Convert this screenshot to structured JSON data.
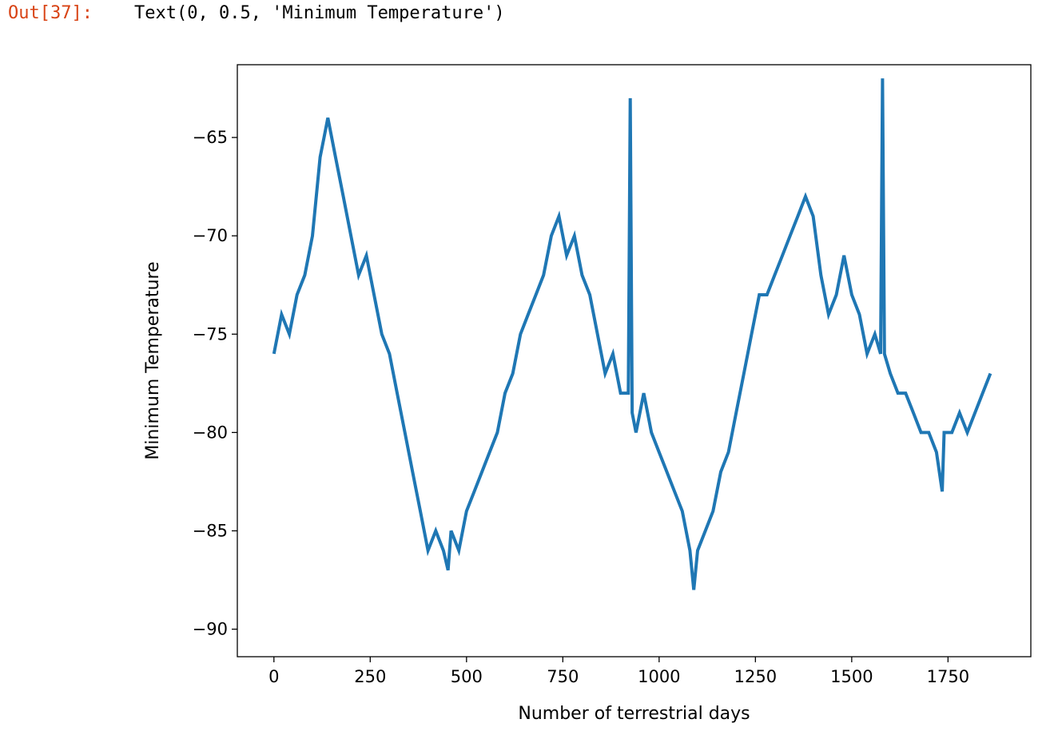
{
  "cell": {
    "prompt": "Out[37]:",
    "text": "Text(0, 0.5, 'Minimum Temperature')"
  },
  "chart_data": {
    "type": "line",
    "title": "",
    "xlabel": "Number of terrestrial days",
    "ylabel": "Minimum Temperature",
    "xlim": [
      -95,
      1965
    ],
    "ylim": [
      -91.4,
      -61.3
    ],
    "xticks": [
      0,
      250,
      500,
      750,
      1000,
      1250,
      1500,
      1750
    ],
    "xtick_labels": [
      "0",
      "250",
      "500",
      "750",
      "1000",
      "1250",
      "1500",
      "1750"
    ],
    "yticks": [
      -65,
      -70,
      -75,
      -80,
      -85,
      -90
    ],
    "ytick_labels": [
      "−65",
      "−70",
      "−75",
      "−80",
      "−85",
      "−90"
    ],
    "grid": false,
    "series": [
      {
        "color": "#1f77b4",
        "x": [
          0,
          20,
          40,
          60,
          80,
          100,
          120,
          130,
          140,
          160,
          180,
          200,
          220,
          240,
          260,
          280,
          300,
          320,
          340,
          360,
          380,
          400,
          420,
          440,
          452,
          460,
          480,
          500,
          520,
          540,
          560,
          580,
          600,
          620,
          640,
          660,
          680,
          700,
          720,
          740,
          760,
          780,
          800,
          820,
          840,
          860,
          880,
          900,
          920,
          925,
          930,
          940,
          960,
          980,
          1000,
          1020,
          1040,
          1060,
          1080,
          1090,
          1100,
          1120,
          1140,
          1160,
          1180,
          1200,
          1220,
          1240,
          1260,
          1280,
          1300,
          1320,
          1340,
          1360,
          1380,
          1400,
          1420,
          1440,
          1460,
          1480,
          1500,
          1520,
          1540,
          1560,
          1575,
          1580,
          1585,
          1600,
          1620,
          1640,
          1660,
          1680,
          1700,
          1720,
          1735,
          1740,
          1760,
          1780,
          1800,
          1820,
          1840,
          1860
        ],
        "y": [
          -76,
          -74,
          -75,
          -73,
          -72,
          -70,
          -66,
          -65,
          -64,
          -66,
          -68,
          -70,
          -72,
          -71,
          -73,
          -75,
          -76,
          -78,
          -80,
          -82,
          -84,
          -86,
          -85,
          -86,
          -87,
          -85,
          -86,
          -84,
          -83,
          -82,
          -81,
          -80,
          -78,
          -77,
          -75,
          -74,
          -73,
          -72,
          -70,
          -69,
          -71,
          -70,
          -72,
          -73,
          -75,
          -77,
          -76,
          -78,
          -78,
          -63,
          -79,
          -80,
          -78,
          -80,
          -81,
          -82,
          -83,
          -84,
          -86,
          -88,
          -86,
          -85,
          -84,
          -82,
          -81,
          -79,
          -77,
          -75,
          -73,
          -73,
          -72,
          -71,
          -70,
          -69,
          -68,
          -69,
          -72,
          -74,
          -73,
          -71,
          -73,
          -74,
          -76,
          -75,
          -76,
          -62,
          -76,
          -77,
          -78,
          -78,
          -79,
          -80,
          -80,
          -81,
          -83,
          -80,
          -80,
          -79,
          -80,
          -79,
          -78,
          -77
        ]
      }
    ]
  }
}
